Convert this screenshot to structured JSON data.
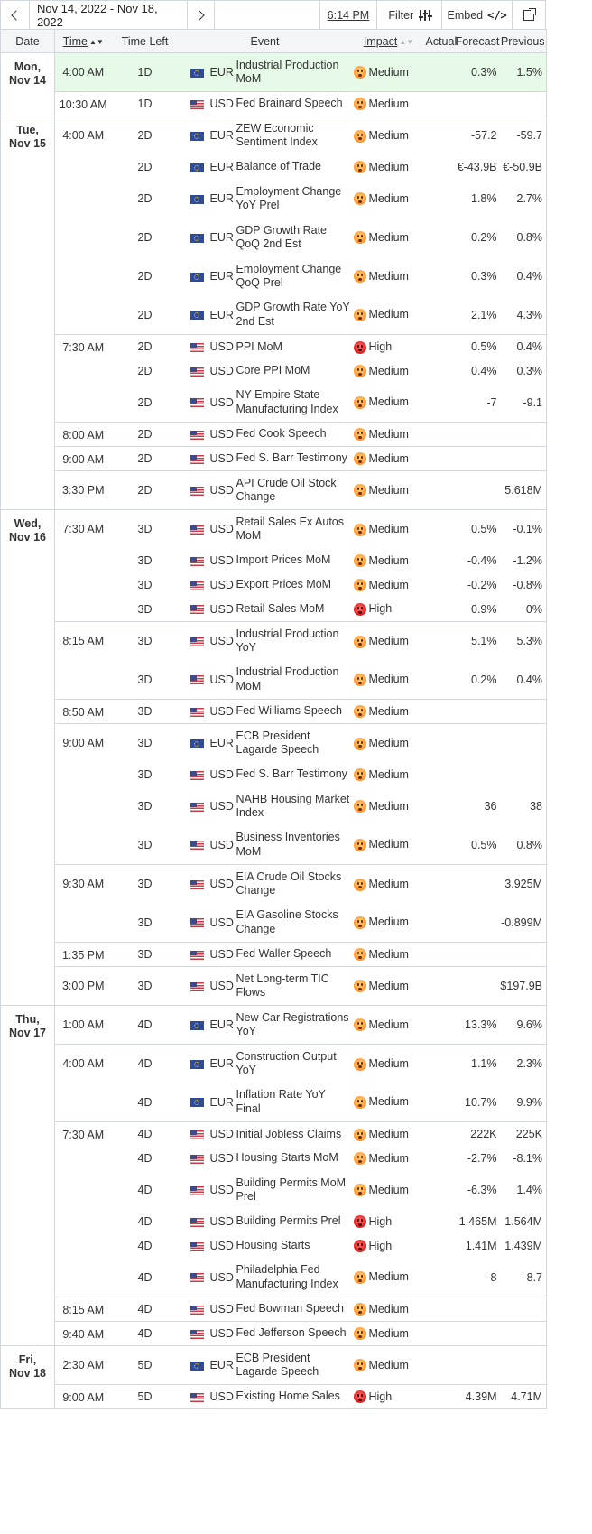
{
  "toolbar": {
    "date_range": "Nov 14, 2022 - Nov 18, 2022",
    "current_time": "6:14 PM",
    "filter_label": "Filter",
    "embed_label": "Embed",
    "embed_code_icon": "</>"
  },
  "columns": {
    "date": "Date",
    "time": "Time",
    "time_left": "Time Left",
    "event": "Event",
    "impact": "Impact",
    "actual": "Actual",
    "forecast": "Forecast",
    "previous": "Previous"
  },
  "colors": {
    "highlight_row": "#e7f9e7",
    "border": "#d3d6da",
    "header_bg": "#f4f5f7",
    "medium": "#ff9c3a",
    "high": "#e12a2a"
  },
  "days": [
    {
      "weekday": "Mon,",
      "date": "Nov 14",
      "groups": [
        {
          "time": "4:00 AM",
          "events": [
            {
              "left": "1D",
              "flag": "eu-flag-icon",
              "cur": "EUR",
              "event": "Industrial Production MoM",
              "impact": "Medium",
              "actual": "",
              "forecast": "0.3%",
              "previous": "1.5%",
              "highlight": true
            }
          ]
        },
        {
          "time": "10:30 AM",
          "events": [
            {
              "left": "1D",
              "flag": "us-flag-icon",
              "cur": "USD",
              "event": "Fed Brainard Speech",
              "impact": "Medium",
              "actual": "",
              "forecast": "",
              "previous": ""
            }
          ]
        }
      ]
    },
    {
      "weekday": "Tue,",
      "date": "Nov 15",
      "groups": [
        {
          "time": "4:00 AM",
          "events": [
            {
              "left": "2D",
              "flag": "eu-flag-icon",
              "cur": "EUR",
              "event": "ZEW Economic Sentiment Index",
              "impact": "Medium",
              "actual": "",
              "forecast": "-57.2",
              "previous": "-59.7"
            },
            {
              "left": "2D",
              "flag": "eu-flag-icon",
              "cur": "EUR",
              "event": "Balance of Trade",
              "impact": "Medium",
              "actual": "",
              "forecast": "€-43.9B",
              "previous": "€-50.9B"
            },
            {
              "left": "2D",
              "flag": "eu-flag-icon",
              "cur": "EUR",
              "event": "Employment Change YoY Prel",
              "impact": "Medium",
              "actual": "",
              "forecast": "1.8%",
              "previous": "2.7%"
            },
            {
              "left": "2D",
              "flag": "eu-flag-icon",
              "cur": "EUR",
              "event": "GDP Growth Rate QoQ 2nd Est",
              "impact": "Medium",
              "actual": "",
              "forecast": "0.2%",
              "previous": "0.8%"
            },
            {
              "left": "2D",
              "flag": "eu-flag-icon",
              "cur": "EUR",
              "event": "Employment Change QoQ Prel",
              "impact": "Medium",
              "actual": "",
              "forecast": "0.3%",
              "previous": "0.4%"
            },
            {
              "left": "2D",
              "flag": "eu-flag-icon",
              "cur": "EUR",
              "event": "GDP Growth Rate YoY 2nd Est",
              "impact": "Medium",
              "actual": "",
              "forecast": "2.1%",
              "previous": "4.3%"
            }
          ]
        },
        {
          "time": "7:30 AM",
          "events": [
            {
              "left": "2D",
              "flag": "us-flag-icon",
              "cur": "USD",
              "event": "PPI MoM",
              "impact": "High",
              "actual": "",
              "forecast": "0.5%",
              "previous": "0.4%"
            },
            {
              "left": "2D",
              "flag": "us-flag-icon",
              "cur": "USD",
              "event": "Core PPI MoM",
              "impact": "Medium",
              "actual": "",
              "forecast": "0.4%",
              "previous": "0.3%"
            },
            {
              "left": "2D",
              "flag": "us-flag-icon",
              "cur": "USD",
              "event": "NY Empire State Manufacturing Index",
              "impact": "Medium",
              "actual": "",
              "forecast": "-7",
              "previous": "-9.1"
            }
          ]
        },
        {
          "time": "8:00 AM",
          "events": [
            {
              "left": "2D",
              "flag": "us-flag-icon",
              "cur": "USD",
              "event": "Fed Cook Speech",
              "impact": "Medium",
              "actual": "",
              "forecast": "",
              "previous": ""
            }
          ]
        },
        {
          "time": "9:00 AM",
          "events": [
            {
              "left": "2D",
              "flag": "us-flag-icon",
              "cur": "USD",
              "event": "Fed S. Barr Testimony",
              "impact": "Medium",
              "actual": "",
              "forecast": "",
              "previous": ""
            }
          ]
        },
        {
          "time": "3:30 PM",
          "events": [
            {
              "left": "2D",
              "flag": "us-flag-icon",
              "cur": "USD",
              "event": "API Crude Oil Stock Change",
              "impact": "Medium",
              "actual": "",
              "forecast": "",
              "previous": "5.618M"
            }
          ]
        }
      ]
    },
    {
      "weekday": "Wed,",
      "date": "Nov 16",
      "groups": [
        {
          "time": "7:30 AM",
          "events": [
            {
              "left": "3D",
              "flag": "us-flag-icon",
              "cur": "USD",
              "event": "Retail Sales Ex Autos MoM",
              "impact": "Medium",
              "actual": "",
              "forecast": "0.5%",
              "previous": "-0.1%"
            },
            {
              "left": "3D",
              "flag": "us-flag-icon",
              "cur": "USD",
              "event": "Import Prices MoM",
              "impact": "Medium",
              "actual": "",
              "forecast": "-0.4%",
              "previous": "-1.2%"
            },
            {
              "left": "3D",
              "flag": "us-flag-icon",
              "cur": "USD",
              "event": "Export Prices MoM",
              "impact": "Medium",
              "actual": "",
              "forecast": "-0.2%",
              "previous": "-0.8%"
            },
            {
              "left": "3D",
              "flag": "us-flag-icon",
              "cur": "USD",
              "event": "Retail Sales MoM",
              "impact": "High",
              "actual": "",
              "forecast": "0.9%",
              "previous": "0%"
            }
          ]
        },
        {
          "time": "8:15 AM",
          "events": [
            {
              "left": "3D",
              "flag": "us-flag-icon",
              "cur": "USD",
              "event": "Industrial Production YoY",
              "impact": "Medium",
              "actual": "",
              "forecast": "5.1%",
              "previous": "5.3%"
            },
            {
              "left": "3D",
              "flag": "us-flag-icon",
              "cur": "USD",
              "event": "Industrial Production MoM",
              "impact": "Medium",
              "actual": "",
              "forecast": "0.2%",
              "previous": "0.4%"
            }
          ]
        },
        {
          "time": "8:50 AM",
          "events": [
            {
              "left": "3D",
              "flag": "us-flag-icon",
              "cur": "USD",
              "event": "Fed Williams Speech",
              "impact": "Medium",
              "actual": "",
              "forecast": "",
              "previous": ""
            }
          ]
        },
        {
          "time": "9:00 AM",
          "events": [
            {
              "left": "3D",
              "flag": "eu-flag-icon",
              "cur": "EUR",
              "event": "ECB President Lagarde Speech",
              "impact": "Medium",
              "actual": "",
              "forecast": "",
              "previous": ""
            },
            {
              "left": "3D",
              "flag": "us-flag-icon",
              "cur": "USD",
              "event": "Fed S. Barr Testimony",
              "impact": "Medium",
              "actual": "",
              "forecast": "",
              "previous": ""
            },
            {
              "left": "3D",
              "flag": "us-flag-icon",
              "cur": "USD",
              "event": "NAHB Housing Market Index",
              "impact": "Medium",
              "actual": "",
              "forecast": "36",
              "previous": "38"
            },
            {
              "left": "3D",
              "flag": "us-flag-icon",
              "cur": "USD",
              "event": "Business Inventories MoM",
              "impact": "Medium",
              "actual": "",
              "forecast": "0.5%",
              "previous": "0.8%"
            }
          ]
        },
        {
          "time": "9:30 AM",
          "events": [
            {
              "left": "3D",
              "flag": "us-flag-icon",
              "cur": "USD",
              "event": "EIA Crude Oil Stocks Change",
              "impact": "Medium",
              "actual": "",
              "forecast": "",
              "previous": "3.925M"
            },
            {
              "left": "3D",
              "flag": "us-flag-icon",
              "cur": "USD",
              "event": "EIA Gasoline Stocks Change",
              "impact": "Medium",
              "actual": "",
              "forecast": "",
              "previous": "-0.899M"
            }
          ]
        },
        {
          "time": "1:35 PM",
          "events": [
            {
              "left": "3D",
              "flag": "us-flag-icon",
              "cur": "USD",
              "event": "Fed Waller Speech",
              "impact": "Medium",
              "actual": "",
              "forecast": "",
              "previous": ""
            }
          ]
        },
        {
          "time": "3:00 PM",
          "events": [
            {
              "left": "3D",
              "flag": "us-flag-icon",
              "cur": "USD",
              "event": "Net Long-term TIC Flows",
              "impact": "Medium",
              "actual": "",
              "forecast": "",
              "previous": "$197.9B"
            }
          ]
        }
      ]
    },
    {
      "weekday": "Thu,",
      "date": "Nov 17",
      "groups": [
        {
          "time": "1:00 AM",
          "events": [
            {
              "left": "4D",
              "flag": "eu-flag-icon",
              "cur": "EUR",
              "event": "New Car Registrations YoY",
              "impact": "Medium",
              "actual": "",
              "forecast": "13.3%",
              "previous": "9.6%"
            }
          ]
        },
        {
          "time": "4:00 AM",
          "events": [
            {
              "left": "4D",
              "flag": "eu-flag-icon",
              "cur": "EUR",
              "event": "Construction Output YoY",
              "impact": "Medium",
              "actual": "",
              "forecast": "1.1%",
              "previous": "2.3%"
            },
            {
              "left": "4D",
              "flag": "eu-flag-icon",
              "cur": "EUR",
              "event": "Inflation Rate YoY Final",
              "impact": "Medium",
              "actual": "",
              "forecast": "10.7%",
              "previous": "9.9%"
            }
          ]
        },
        {
          "time": "7:30 AM",
          "events": [
            {
              "left": "4D",
              "flag": "us-flag-icon",
              "cur": "USD",
              "event": "Initial Jobless Claims",
              "impact": "Medium",
              "actual": "",
              "forecast": "222K",
              "previous": "225K"
            },
            {
              "left": "4D",
              "flag": "us-flag-icon",
              "cur": "USD",
              "event": "Housing Starts MoM",
              "impact": "Medium",
              "actual": "",
              "forecast": "-2.7%",
              "previous": "-8.1%"
            },
            {
              "left": "4D",
              "flag": "us-flag-icon",
              "cur": "USD",
              "event": "Building Permits MoM Prel",
              "impact": "Medium",
              "actual": "",
              "forecast": "-6.3%",
              "previous": "1.4%"
            },
            {
              "left": "4D",
              "flag": "us-flag-icon",
              "cur": "USD",
              "event": "Building Permits Prel",
              "impact": "High",
              "actual": "",
              "forecast": "1.465M",
              "previous": "1.564M"
            },
            {
              "left": "4D",
              "flag": "us-flag-icon",
              "cur": "USD",
              "event": "Housing Starts",
              "impact": "High",
              "actual": "",
              "forecast": "1.41M",
              "previous": "1.439M"
            },
            {
              "left": "4D",
              "flag": "us-flag-icon",
              "cur": "USD",
              "event": "Philadelphia Fed Manufacturing Index",
              "impact": "Medium",
              "actual": "",
              "forecast": "-8",
              "previous": "-8.7"
            }
          ]
        },
        {
          "time": "8:15 AM",
          "events": [
            {
              "left": "4D",
              "flag": "us-flag-icon",
              "cur": "USD",
              "event": "Fed Bowman Speech",
              "impact": "Medium",
              "actual": "",
              "forecast": "",
              "previous": ""
            }
          ]
        },
        {
          "time": "9:40 AM",
          "events": [
            {
              "left": "4D",
              "flag": "us-flag-icon",
              "cur": "USD",
              "event": "Fed Jefferson Speech",
              "impact": "Medium",
              "actual": "",
              "forecast": "",
              "previous": ""
            }
          ]
        }
      ]
    },
    {
      "weekday": "Fri,",
      "date": "Nov 18",
      "groups": [
        {
          "time": "2:30 AM",
          "events": [
            {
              "left": "5D",
              "flag": "eu-flag-icon",
              "cur": "EUR",
              "event": "ECB President Lagarde Speech",
              "impact": "Medium",
              "actual": "",
              "forecast": "",
              "previous": ""
            }
          ]
        },
        {
          "time": "9:00 AM",
          "events": [
            {
              "left": "5D",
              "flag": "us-flag-icon",
              "cur": "USD",
              "event": "Existing Home Sales",
              "impact": "High",
              "actual": "",
              "forecast": "4.39M",
              "previous": "4.71M"
            }
          ]
        }
      ]
    }
  ]
}
